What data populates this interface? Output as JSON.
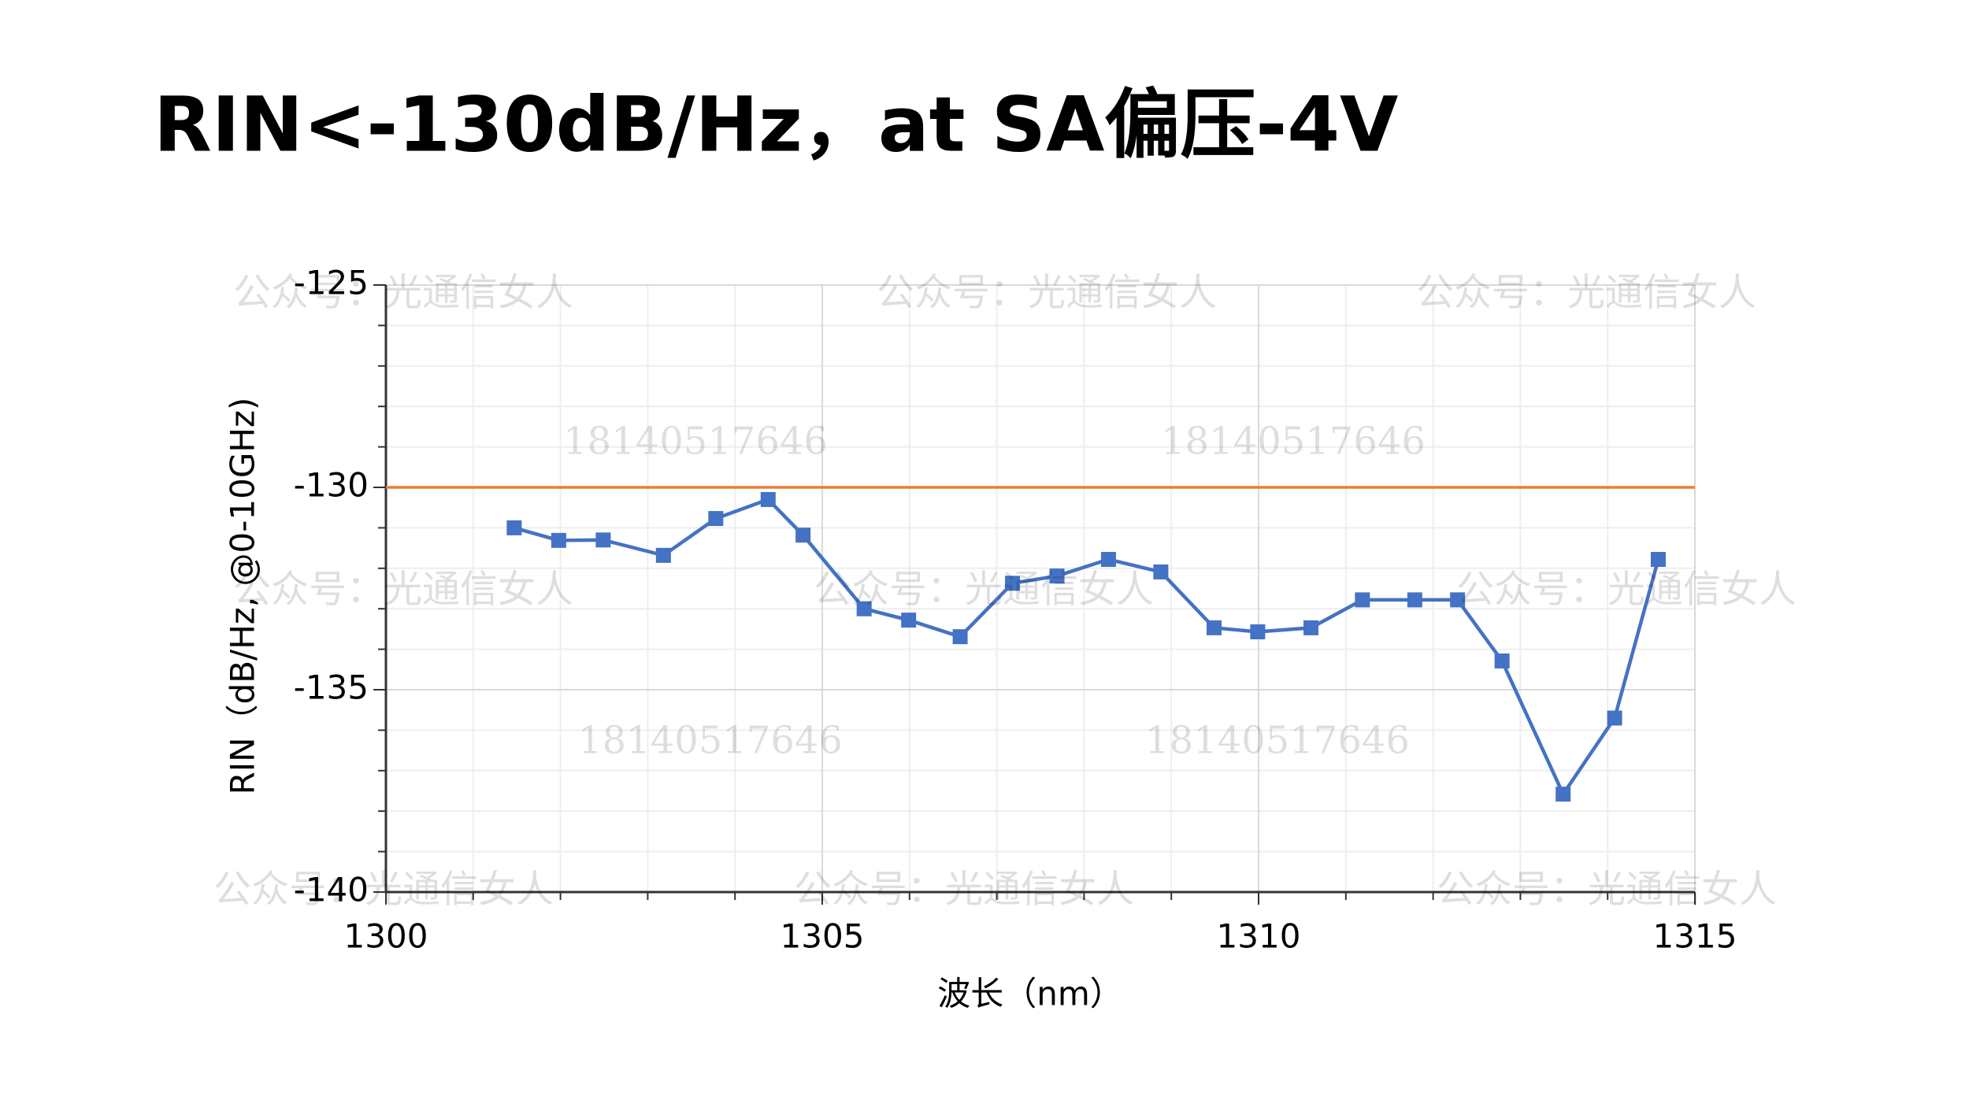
{
  "chart_data": {
    "type": "line",
    "title": "RIN<-130dB/Hz，at SA偏压-4V",
    "x_label": "波长（nm）",
    "y_label": "RIN（dB/Hz, @0-10GHz)",
    "x": [
      1301.47,
      1301.98,
      1302.49,
      1303.18,
      1303.78,
      1304.38,
      1304.78,
      1305.48,
      1305.99,
      1306.58,
      1307.18,
      1307.69,
      1308.28,
      1308.88,
      1309.49,
      1309.99,
      1310.6,
      1311.19,
      1311.79,
      1312.28,
      1312.79,
      1313.49,
      1314.08,
      1314.58
    ],
    "series": [
      {
        "color": "#4472c4",
        "values": [
          -131.0,
          -131.31,
          -131.3,
          -131.68,
          -130.77,
          -130.3,
          -131.18,
          -133.0,
          -133.28,
          -133.69,
          -132.37,
          -132.19,
          -131.78,
          -132.09,
          -133.47,
          -133.57,
          -133.47,
          -132.78,
          -132.78,
          -132.78,
          -134.29,
          -137.58,
          -135.7,
          -131.78
        ]
      }
    ],
    "reference_line": {
      "value": -130,
      "color": "#ed7d31"
    },
    "xlim": [
      1300,
      1315
    ],
    "xticks": [
      1300,
      1305,
      1310,
      1315
    ],
    "ylim": [
      -140,
      -125
    ],
    "yticks": [
      -140,
      -135,
      -130,
      -125
    ],
    "grid": true,
    "watermark": {
      "account": "公众号：光通信女人",
      "phone": "18140517646"
    }
  }
}
